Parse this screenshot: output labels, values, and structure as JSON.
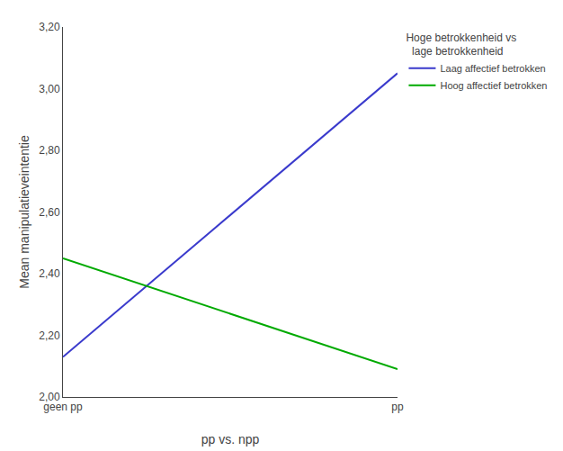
{
  "chart_data": {
    "type": "line",
    "categories": [
      "geen pp",
      "pp"
    ],
    "series": [
      {
        "name": "Laag affectief betrokken",
        "color": "#3a3acc",
        "values": [
          2.13,
          3.05
        ]
      },
      {
        "name": "Hoog affectief betrokken",
        "color": "#00aa00",
        "values": [
          2.45,
          2.09
        ]
      }
    ],
    "xlabel": "pp vs. npp",
    "ylabel": "Mean manipulatieveintentie",
    "legend_title": "Hoge betrokkenheid vs\n  lage betrokkenheid",
    "ylim": [
      2.0,
      3.2
    ],
    "yticks": [
      {
        "value": 2.0,
        "label": "2,00"
      },
      {
        "value": 2.2,
        "label": "2,20"
      },
      {
        "value": 2.4,
        "label": "2,40"
      },
      {
        "value": 2.6,
        "label": "2,60"
      },
      {
        "value": 2.8,
        "label": "2,80"
      },
      {
        "value": 3.0,
        "label": "3,00"
      },
      {
        "value": 3.2,
        "label": "3,20"
      }
    ],
    "grid": false,
    "legend": "right"
  }
}
